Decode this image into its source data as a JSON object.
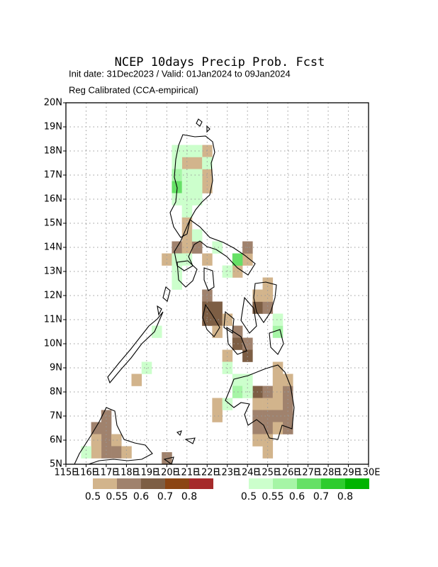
{
  "map": {
    "title": "NCEP 10days Precip Prob. Fcst",
    "subtitle": "Init date: 31Dec2023 / Valid: 01Jan2024 to 09Jan2024",
    "method": "Reg Calibrated (CCA-empirical)",
    "lonlim": [
      115,
      130
    ],
    "latlim": [
      5,
      20
    ],
    "cell_size": 0.5,
    "lat_ticks": [
      {
        "value": 5,
        "label": "5N"
      },
      {
        "value": 6,
        "label": "6N"
      },
      {
        "value": 7,
        "label": "7N"
      },
      {
        "value": 8,
        "label": "8N"
      },
      {
        "value": 9,
        "label": "9N"
      },
      {
        "value": 10,
        "label": "10N"
      },
      {
        "value": 11,
        "label": "11N"
      },
      {
        "value": 12,
        "label": "12N"
      },
      {
        "value": 13,
        "label": "13N"
      },
      {
        "value": 14,
        "label": "14N"
      },
      {
        "value": 15,
        "label": "15N"
      },
      {
        "value": 16,
        "label": "16N"
      },
      {
        "value": 17,
        "label": "17N"
      },
      {
        "value": 18,
        "label": "18N"
      },
      {
        "value": 19,
        "label": "19N"
      },
      {
        "value": 20,
        "label": "20N"
      }
    ],
    "lon_ticks": [
      {
        "value": 115,
        "label": "115E"
      },
      {
        "value": 116,
        "label": "116E"
      },
      {
        "value": 117,
        "label": "117E"
      },
      {
        "value": 118,
        "label": "118E"
      },
      {
        "value": 119,
        "label": "119E"
      },
      {
        "value": 120,
        "label": "120E"
      },
      {
        "value": 121,
        "label": "121E"
      },
      {
        "value": 122,
        "label": "122E"
      },
      {
        "value": 123,
        "label": "123E"
      },
      {
        "value": 124,
        "label": "124E"
      },
      {
        "value": 125,
        "label": "125E"
      },
      {
        "value": 126,
        "label": "126E"
      },
      {
        "value": 127,
        "label": "127E"
      },
      {
        "value": 128,
        "label": "128E"
      },
      {
        "value": 129,
        "label": "129E"
      },
      {
        "value": 130,
        "label": "130E"
      }
    ],
    "dry_scale": {
      "labels": [
        0.5,
        0.55,
        0.6,
        0.7,
        0.8
      ],
      "colors": [
        "#d2b48c",
        "#a0826d",
        "#7d5e44",
        "#8b4513",
        "#a52a2a"
      ]
    },
    "wet_scale": {
      "labels": [
        0.5,
        0.55,
        0.6,
        0.7,
        0.8
      ],
      "colors": [
        "#ccffcc",
        "#a6f5a6",
        "#66e066",
        "#2ecc2e",
        "#00b400"
      ]
    },
    "dry_cells": [
      [
        121.75,
        17.75,
        0.5
      ],
      [
        120.75,
        17.25,
        0.5
      ],
      [
        121.25,
        17.25,
        0.5
      ],
      [
        121.75,
        16.75,
        0.5
      ],
      [
        121.75,
        16.25,
        0.5
      ],
      [
        120.75,
        14.75,
        0.5
      ],
      [
        120.75,
        14.25,
        0.5
      ],
      [
        120.25,
        13.75,
        0.55
      ],
      [
        120.75,
        13.75,
        0.5
      ],
      [
        121.25,
        13.75,
        0.55
      ],
      [
        121.75,
        13.25,
        0.5
      ],
      [
        119.75,
        13.25,
        0.5
      ],
      [
        123.75,
        13.25,
        0.5
      ],
      [
        123.25,
        12.75,
        0.5
      ],
      [
        123.75,
        13.75,
        0.55
      ],
      [
        121.75,
        11.75,
        0.55
      ],
      [
        121.75,
        11.25,
        0.6
      ],
      [
        122.25,
        11.25,
        0.6
      ],
      [
        121.75,
        10.75,
        0.6
      ],
      [
        122.25,
        10.75,
        0.6
      ],
      [
        122.25,
        10.25,
        0.5
      ],
      [
        122.75,
        10.75,
        0.5
      ],
      [
        123.25,
        10.25,
        0.55
      ],
      [
        123.25,
        9.75,
        0.6
      ],
      [
        123.75,
        9.75,
        0.55
      ],
      [
        122.75,
        9.25,
        0.5
      ],
      [
        123.75,
        9.25,
        0.6
      ],
      [
        124.25,
        11.25,
        0.6
      ],
      [
        124.75,
        11.25,
        0.55
      ],
      [
        124.25,
        11.75,
        0.5
      ],
      [
        124.75,
        11.75,
        0.5
      ],
      [
        124.75,
        12.25,
        0.5
      ],
      [
        124.25,
        7.75,
        0.6
      ],
      [
        124.75,
        7.75,
        0.55
      ],
      [
        125.25,
        7.75,
        0.5
      ],
      [
        125.75,
        7.75,
        0.55
      ],
      [
        125.25,
        8.25,
        0.5
      ],
      [
        125.75,
        8.25,
        0.5
      ],
      [
        125.25,
        8.75,
        0.5
      ],
      [
        124.25,
        7.25,
        0.5
      ],
      [
        124.75,
        7.25,
        0.5
      ],
      [
        125.25,
        7.25,
        0.5
      ],
      [
        125.75,
        7.25,
        0.55
      ],
      [
        124.25,
        6.75,
        0.55
      ],
      [
        124.75,
        6.75,
        0.55
      ],
      [
        125.25,
        6.75,
        0.55
      ],
      [
        125.75,
        6.75,
        0.55
      ],
      [
        124.25,
        6.25,
        0.55
      ],
      [
        124.75,
        6.25,
        0.55
      ],
      [
        125.25,
        6.25,
        0.5
      ],
      [
        125.75,
        6.25,
        0.55
      ],
      [
        124.25,
        5.75,
        0.5
      ],
      [
        124.75,
        5.75,
        0.5
      ],
      [
        124.75,
        5.25,
        0.5
      ],
      [
        122.25,
        6.75,
        0.5
      ],
      [
        122.25,
        7.25,
        0.5
      ],
      [
        118.25,
        8.25,
        0.5
      ],
      [
        116.75,
        6.75,
        0.55
      ],
      [
        116.75,
        6.25,
        0.55
      ],
      [
        116.75,
        5.75,
        0.55
      ],
      [
        116.75,
        5.25,
        0.55
      ],
      [
        116.25,
        6.25,
        0.55
      ],
      [
        116.25,
        5.75,
        0.5
      ],
      [
        116.25,
        5.25,
        0.5
      ],
      [
        117.25,
        5.75,
        0.5
      ],
      [
        117.25,
        5.25,
        0.55
      ],
      [
        117.75,
        5.25,
        0.5
      ],
      [
        119.75,
        5.0,
        0.55
      ]
    ],
    "wet_cells": [
      [
        120.25,
        17.75,
        0.5
      ],
      [
        120.75,
        17.75,
        0.5
      ],
      [
        121.25,
        17.75,
        0.5
      ],
      [
        120.25,
        17.25,
        0.5
      ],
      [
        121.75,
        17.25,
        0.5
      ],
      [
        120.25,
        16.75,
        0.55
      ],
      [
        120.75,
        16.75,
        0.5
      ],
      [
        121.25,
        16.75,
        0.5
      ],
      [
        120.25,
        16.25,
        0.6
      ],
      [
        120.75,
        16.25,
        0.5
      ],
      [
        121.25,
        16.25,
        0.5
      ],
      [
        120.25,
        15.75,
        0.5
      ],
      [
        120.75,
        15.75,
        0.5
      ],
      [
        121.25,
        15.75,
        0.5
      ],
      [
        120.75,
        15.25,
        0.5
      ],
      [
        121.25,
        14.25,
        0.5
      ],
      [
        120.25,
        13.25,
        0.5
      ],
      [
        120.75,
        13.25,
        0.5
      ],
      [
        120.25,
        12.75,
        0.5
      ],
      [
        120.25,
        12.25,
        0.5
      ],
      [
        122.25,
        13.75,
        0.5
      ],
      [
        123.25,
        13.25,
        0.6
      ],
      [
        122.75,
        12.75,
        0.5
      ],
      [
        125.25,
        10.25,
        0.55
      ],
      [
        125.25,
        10.75,
        0.5
      ],
      [
        123.25,
        8.25,
        0.5
      ],
      [
        123.75,
        8.25,
        0.5
      ],
      [
        123.25,
        7.75,
        0.55
      ],
      [
        123.75,
        7.75,
        0.5
      ],
      [
        122.75,
        7.25,
        0.5
      ],
      [
        122.75,
        8.75,
        0.5
      ],
      [
        119.25,
        10.25,
        0.5
      ],
      [
        118.75,
        8.75,
        0.5
      ],
      [
        115.75,
        5.25,
        0.5
      ]
    ]
  }
}
